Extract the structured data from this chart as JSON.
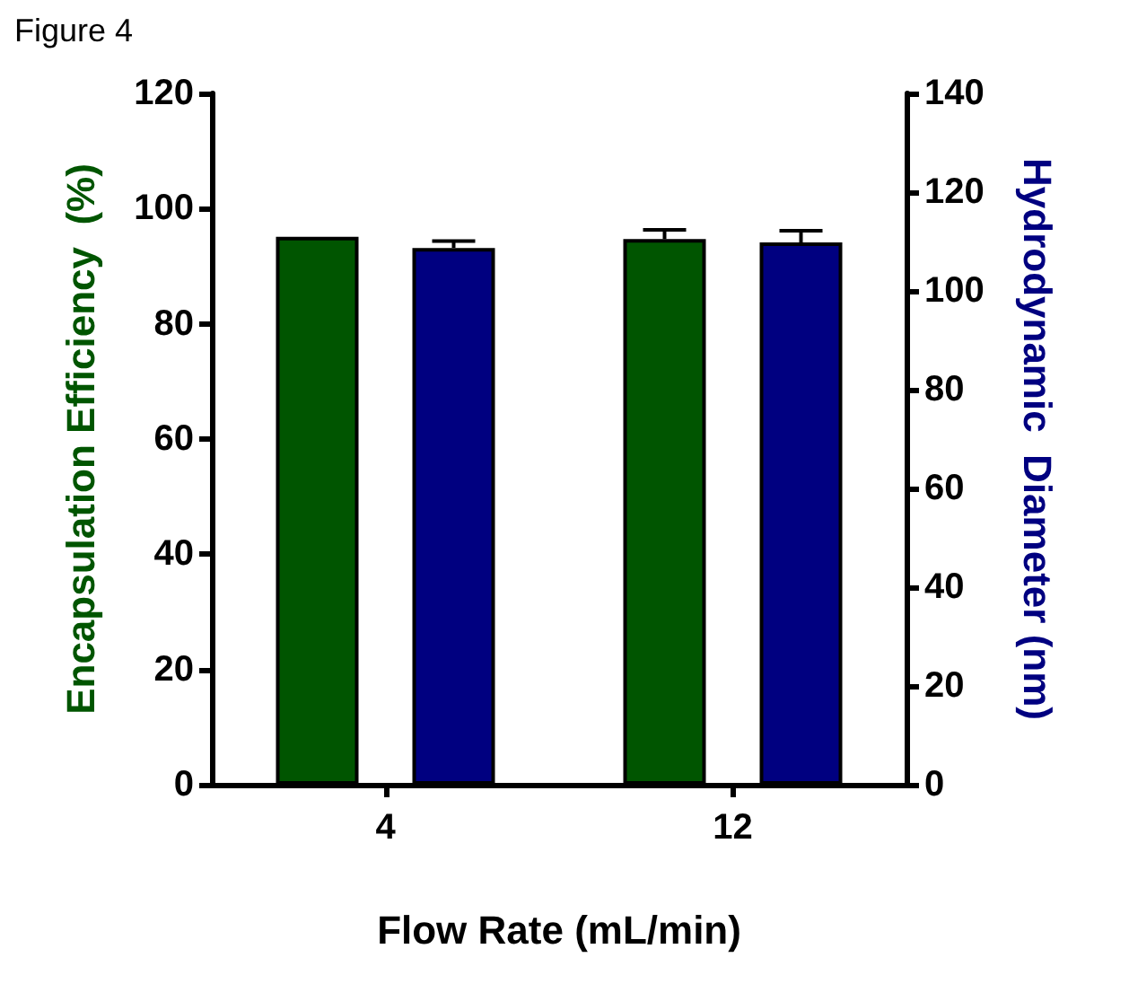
{
  "chart_data": {
    "type": "bar",
    "xlabel": "Flow Rate (mL/min)",
    "ylabel": "Encapsulation Efficiency  (%)",
    "y2label": "Hydrodynamic  Diameter (nm)",
    "annotations": [
      "Figure 4"
    ],
    "categories": [
      "4",
      "12"
    ],
    "series": [
      {
        "color": "#005500",
        "values": [
          95.1,
          94.7
        ],
        "errors": [
          null,
          1.6
        ]
      },
      {
        "color": "#000080",
        "axis": "y2",
        "values": [
          108.7,
          109.8
        ],
        "errors": [
          1.4,
          2.4
        ]
      }
    ],
    "ylim": [
      0,
      120
    ],
    "yticks": [
      0,
      20,
      40,
      60,
      80,
      100,
      120
    ],
    "y2lim": [
      0,
      140
    ],
    "y2ticks": [
      0,
      20,
      40,
      60,
      80,
      100,
      120,
      140
    ],
    "grid": false
  }
}
